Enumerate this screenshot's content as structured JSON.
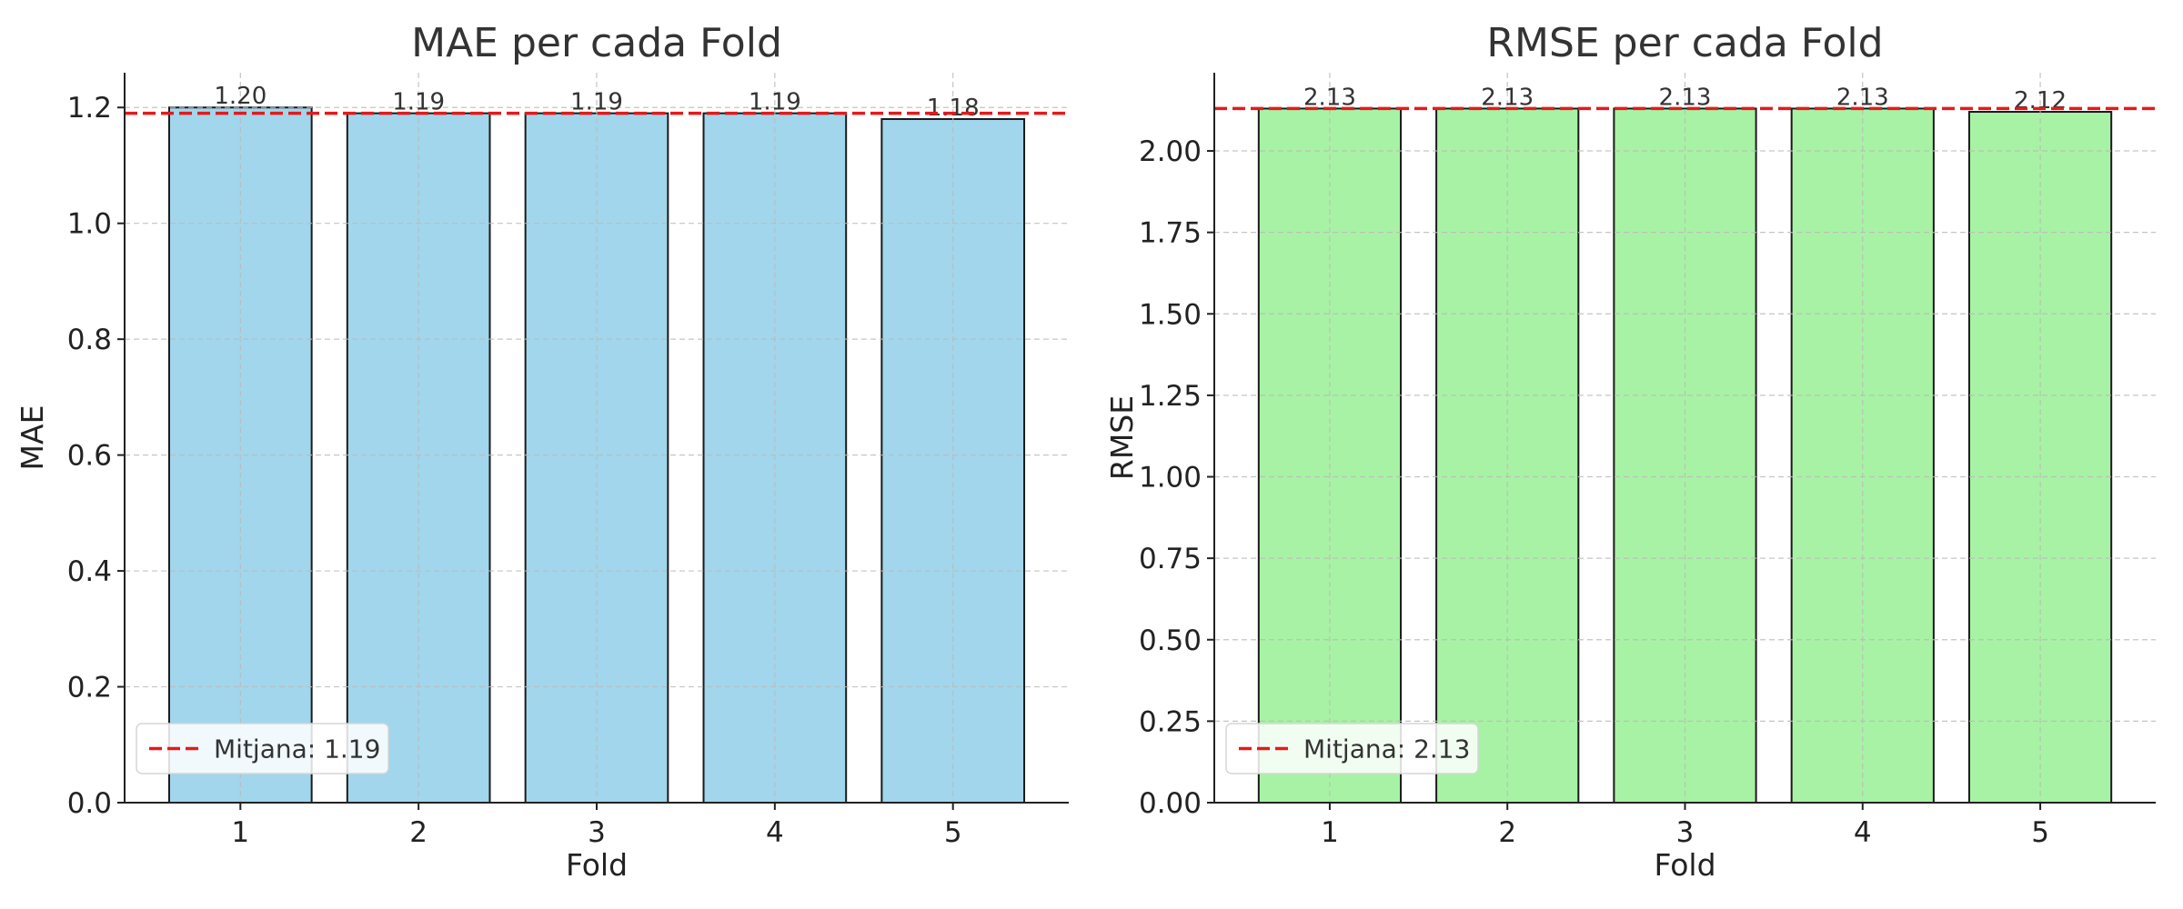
{
  "chart_data": [
    {
      "type": "bar",
      "title": "MAE per cada Fold",
      "xlabel": "Fold",
      "ylabel": "MAE",
      "categories": [
        "1",
        "2",
        "3",
        "4",
        "5"
      ],
      "values": [
        1.2,
        1.19,
        1.19,
        1.19,
        1.18
      ],
      "value_labels": [
        "1.20",
        "1.19",
        "1.19",
        "1.19",
        "1.18"
      ],
      "ylim": [
        0,
        1.26
      ],
      "yticks": [
        0.0,
        0.2,
        0.4,
        0.6,
        0.8,
        1.0,
        1.2
      ],
      "ytick_labels": [
        "0.0",
        "0.2",
        "0.4",
        "0.6",
        "0.8",
        "1.0",
        "1.2"
      ],
      "mean_line": {
        "value": 1.19,
        "label": "Mitjana: 1.19",
        "color": "#e41a1c",
        "style": "dashed"
      },
      "bar_color": "#a1d6ec",
      "grid": true,
      "legend": "lower-left"
    },
    {
      "type": "bar",
      "title": "RMSE per cada Fold",
      "xlabel": "Fold",
      "ylabel": "RMSE",
      "categories": [
        "1",
        "2",
        "3",
        "4",
        "5"
      ],
      "values": [
        2.13,
        2.13,
        2.13,
        2.13,
        2.12
      ],
      "value_labels": [
        "2.13",
        "2.13",
        "2.13",
        "2.13",
        "2.12"
      ],
      "ylim": [
        0,
        2.24
      ],
      "yticks": [
        0.0,
        0.25,
        0.5,
        0.75,
        1.0,
        1.25,
        1.5,
        1.75,
        2.0
      ],
      "ytick_labels": [
        "0.00",
        "0.25",
        "0.50",
        "0.75",
        "1.00",
        "1.25",
        "1.50",
        "1.75",
        "2.00"
      ],
      "mean_line": {
        "value": 2.13,
        "label": "Mitjana: 2.13",
        "color": "#e41a1c",
        "style": "dashed"
      },
      "bar_color": "#a8f2a5",
      "grid": true,
      "legend": "lower-left"
    }
  ]
}
